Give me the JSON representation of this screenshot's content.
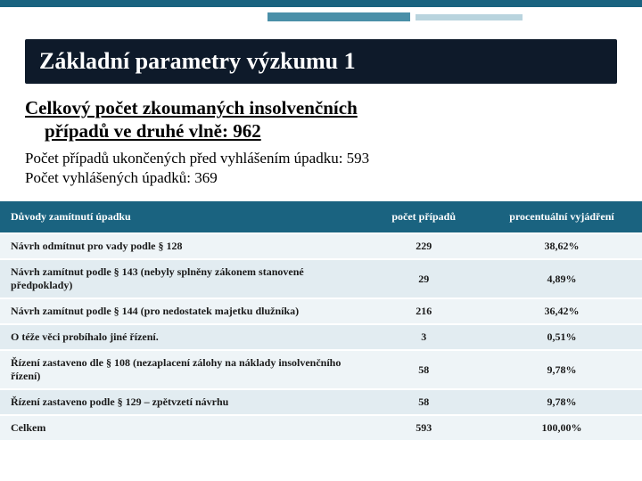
{
  "accent": {
    "top_color": "#1a6380",
    "bar1_color": "#4a8fa8",
    "bar2_color": "#b9d4de"
  },
  "title": "Základní parametry výzkumu 1",
  "subtitle_line1": "Celkový počet zkoumaných insolvenčních",
  "subtitle_line2": "případů ve druhé vlně: 962",
  "count_line1": "Počet případů ukončených před vyhlášením úpadku: 593",
  "count_line2": "Počet vyhlášených úpadků: 369",
  "table": {
    "header_bg": "#1a6380",
    "header_color": "#ffffff",
    "row_bg": "#eef4f7",
    "row_alt_bg": "#e2ecf1",
    "columns": [
      "Důvody zamítnutí úpadku",
      "počet případů",
      "procentuální vyjádření"
    ],
    "rows": [
      {
        "reason": "Návrh odmítnut pro vady podle § 128",
        "count": "229",
        "pct": "38,62%"
      },
      {
        "reason": "Návrh zamítnut podle § 143 (nebyly splněny zákonem stanovené předpoklady)",
        "count": "29",
        "pct": "4,89%"
      },
      {
        "reason": "Návrh zamítnut podle § 144 (pro nedostatek majetku dlužníka)",
        "count": "216",
        "pct": "36,42%"
      },
      {
        "reason": "O téže věci probíhalo jiné řízení.",
        "count": "3",
        "pct": "0,51%"
      },
      {
        "reason": "Řízení zastaveno dle § 108 (nezaplacení zálohy na náklady insolvenčního řízení)",
        "count": "58",
        "pct": "9,78%"
      },
      {
        "reason": "Řízení zastaveno podle § 129 – zpětvzetí návrhu",
        "count": "58",
        "pct": "9,78%"
      },
      {
        "reason": "Celkem",
        "count": "593",
        "pct": "100,00%"
      }
    ]
  }
}
